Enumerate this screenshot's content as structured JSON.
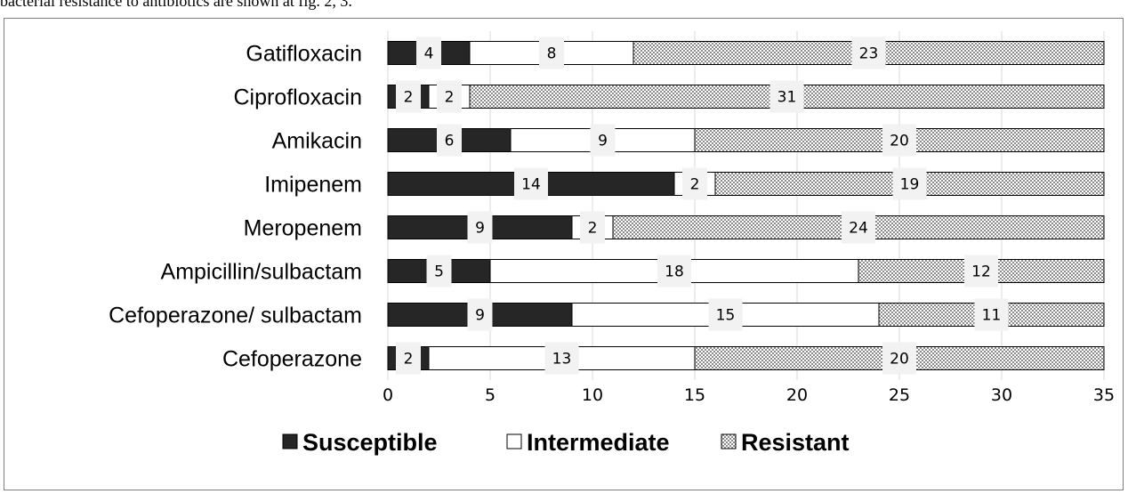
{
  "caption_fragment": "bacterial resistance to antibiotics are shown at fig. 2, 3.",
  "colors": {
    "susceptible": "#262626",
    "intermediate": "#ffffff",
    "resistant_pattern": "dotted-gray",
    "bar_outline": "#000000",
    "label_box": "#f2f2f2"
  },
  "chart_data": {
    "type": "bar",
    "orientation": "horizontal",
    "stacked": true,
    "categories": [
      "Gatifloxacin",
      "Ciprofloxacin",
      "Amikacin",
      "Imipenem",
      "Meropenem",
      "Ampicillin/sulbactam ",
      "Cefoperazone/ sulbactam",
      "Cefoperazone"
    ],
    "series": [
      {
        "name": "Susceptible",
        "values": [
          4,
          2,
          6,
          14,
          9,
          5,
          9,
          2
        ]
      },
      {
        "name": "Intermediate",
        "values": [
          8,
          2,
          9,
          2,
          2,
          18,
          15,
          13
        ]
      },
      {
        "name": "Resistant",
        "values": [
          23,
          31,
          20,
          19,
          24,
          12,
          11,
          20
        ]
      }
    ],
    "xlim": [
      0,
      35
    ],
    "xticks": [
      0,
      5,
      10,
      15,
      20,
      25,
      30,
      35
    ],
    "grid": true,
    "legend_position": "bottom",
    "title": "",
    "xlabel": "",
    "ylabel": ""
  }
}
